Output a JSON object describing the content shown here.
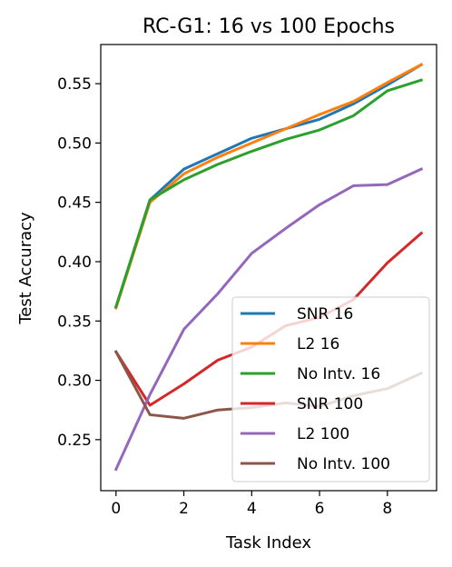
{
  "chart_data": {
    "type": "line",
    "title": "RC-G1: 16 vs 100 Epochs",
    "xlabel": "Task Index",
    "ylabel": "Test Accuracy",
    "xlim": [
      -0.45,
      9.45
    ],
    "ylim": [
      0.207,
      0.583
    ],
    "xticks": [
      0,
      2,
      4,
      6,
      8
    ],
    "yticks": [
      0.25,
      0.3,
      0.35,
      0.4,
      0.45,
      0.5,
      0.55
    ],
    "xtick_labels": [
      "0",
      "2",
      "4",
      "6",
      "8"
    ],
    "ytick_labels": [
      "0.25",
      "0.30",
      "0.35",
      "0.40",
      "0.45",
      "0.50",
      "0.55"
    ],
    "grid": false,
    "legend_position": "lower-right",
    "x": [
      0,
      1,
      2,
      3,
      4,
      5,
      6,
      7,
      8,
      9
    ],
    "series": [
      {
        "name": "SNR 16",
        "color": "#1f77b4",
        "values": [
          0.362,
          0.452,
          0.478,
          0.491,
          0.504,
          0.512,
          0.52,
          0.533,
          0.549,
          0.566
        ]
      },
      {
        "name": "L2 16",
        "color": "#ff7f0e",
        "values": [
          0.361,
          0.45,
          0.474,
          0.488,
          0.5,
          0.512,
          0.524,
          0.535,
          0.551,
          0.566
        ]
      },
      {
        "name": "No Intv. 16",
        "color": "#2ca02c",
        "values": [
          0.362,
          0.452,
          0.469,
          0.482,
          0.493,
          0.503,
          0.511,
          0.523,
          0.544,
          0.553
        ]
      },
      {
        "name": "SNR 100",
        "color": "#d62728",
        "values": [
          0.324,
          0.279,
          0.297,
          0.317,
          0.328,
          0.346,
          0.353,
          0.368,
          0.399,
          0.424
        ]
      },
      {
        "name": "L2 100",
        "color": "#9467bd",
        "values": [
          0.225,
          0.288,
          0.343,
          0.373,
          0.407,
          0.428,
          0.448,
          0.464,
          0.465,
          0.478
        ]
      },
      {
        "name": "No Intv. 100",
        "color": "#8c564b",
        "values": [
          0.324,
          0.271,
          0.268,
          0.275,
          0.277,
          0.281,
          0.278,
          0.287,
          0.293,
          0.306
        ]
      }
    ]
  }
}
